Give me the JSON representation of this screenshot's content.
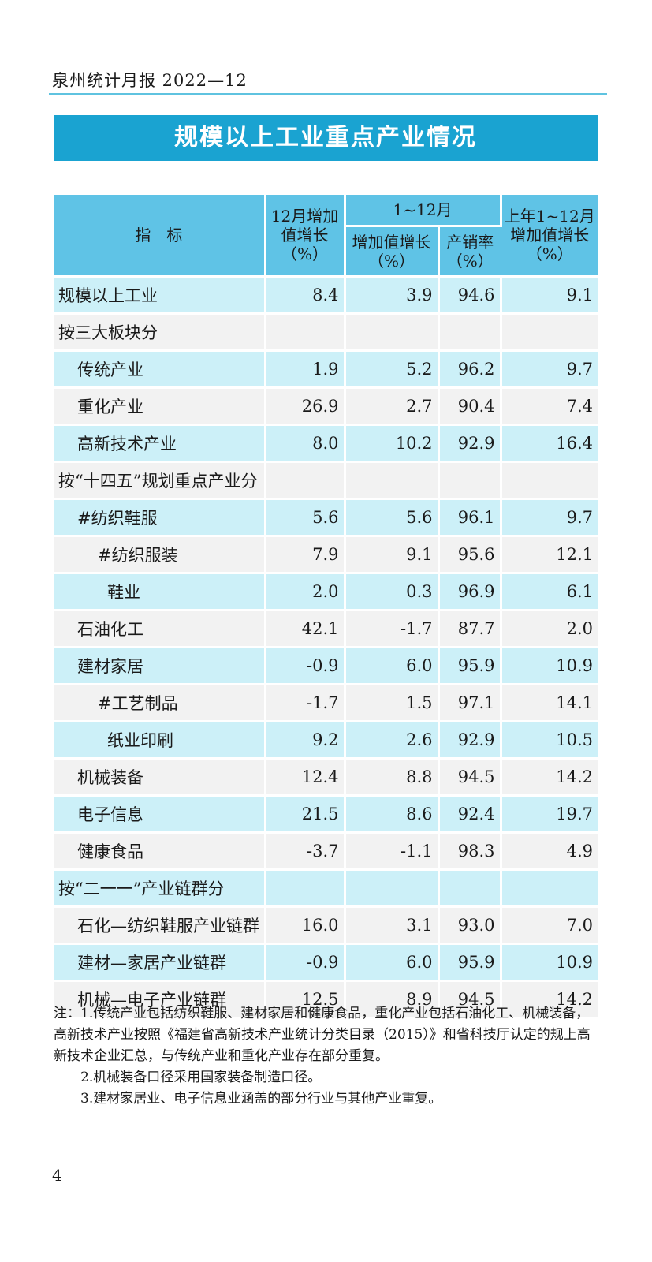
{
  "header": {
    "text": "泉州统计月报 2022—12"
  },
  "title": "规模以上工业重点产业情况",
  "table": {
    "headers": {
      "indicator": "指　标",
      "dec_growth": "12月增加值增长（%）",
      "period": "1~12月",
      "period_growth": "增加值增长（%）",
      "period_sales_rate": "产销率（%）",
      "prev_year_growth": "上年1~12月增加值增长（%）"
    },
    "rows": [
      {
        "label": "规模以上工业",
        "dec": "8.4",
        "growth": "3.9",
        "sales": "94.6",
        "prev": "9.1"
      },
      {
        "label": "按三大板块分",
        "dec": "",
        "growth": "",
        "sales": "",
        "prev": ""
      },
      {
        "label": "传统产业",
        "dec": "1.9",
        "growth": "5.2",
        "sales": "96.2",
        "prev": "9.7"
      },
      {
        "label": "重化产业",
        "dec": "26.9",
        "growth": "2.7",
        "sales": "90.4",
        "prev": "7.4"
      },
      {
        "label": "高新技术产业",
        "dec": "8.0",
        "growth": "10.2",
        "sales": "92.9",
        "prev": "16.4"
      },
      {
        "label": "按“十四五”规划重点产业分",
        "dec": "",
        "growth": "",
        "sales": "",
        "prev": ""
      },
      {
        "label": "#纺织鞋服",
        "dec": "5.6",
        "growth": "5.6",
        "sales": "96.1",
        "prev": "9.7"
      },
      {
        "label": "#纺织服装",
        "dec": "7.9",
        "growth": "9.1",
        "sales": "95.6",
        "prev": "12.1"
      },
      {
        "label": "鞋业",
        "dec": "2.0",
        "growth": "0.3",
        "sales": "96.9",
        "prev": "6.1"
      },
      {
        "label": "石油化工",
        "dec": "42.1",
        "growth": "-1.7",
        "sales": "87.7",
        "prev": "2.0"
      },
      {
        "label": "建材家居",
        "dec": "-0.9",
        "growth": "6.0",
        "sales": "95.9",
        "prev": "10.9"
      },
      {
        "label": "#工艺制品",
        "dec": "-1.7",
        "growth": "1.5",
        "sales": "97.1",
        "prev": "14.1"
      },
      {
        "label": "纸业印刷",
        "dec": "9.2",
        "growth": "2.6",
        "sales": "92.9",
        "prev": "10.5"
      },
      {
        "label": "机械装备",
        "dec": "12.4",
        "growth": "8.8",
        "sales": "94.5",
        "prev": "14.2"
      },
      {
        "label": "电子信息",
        "dec": "21.5",
        "growth": "8.6",
        "sales": "92.4",
        "prev": "19.7"
      },
      {
        "label": "健康食品",
        "dec": "-3.7",
        "growth": "-1.1",
        "sales": "98.3",
        "prev": "4.9"
      },
      {
        "label": "按“二一一”产业链群分",
        "dec": "",
        "growth": "",
        "sales": "",
        "prev": ""
      },
      {
        "label": "石化—纺织鞋服产业链群",
        "dec": "16.0",
        "growth": "3.1",
        "sales": "93.0",
        "prev": "7.0"
      },
      {
        "label": "建材—家居产业链群",
        "dec": "-0.9",
        "growth": "6.0",
        "sales": "95.9",
        "prev": "10.9"
      },
      {
        "label": "机械—电子产业链群",
        "dec": "12.5",
        "growth": "8.9",
        "sales": "94.5",
        "prev": "14.2"
      }
    ]
  },
  "notes": [
    "注：1.传统产业包括纺织鞋服、建材家居和健康食品，重化产业包括石油化工、机械装备，高新技术产业按照《福建省高新技术产业统计分类目录（2015）》和省科技厅认定的规上高新技术企业汇总，与传统产业和重化产业存在部分重复。",
    "2.机械装备口径采用国家装备制造口径。",
    "3.建材家居业、电子信息业涵盖的部分行业与其他产业重复。"
  ],
  "page_number": "4",
  "colors": {
    "banner": "#1aa3d1",
    "header_fill": "#5fc3e6",
    "row_blue": "#ccf0f8",
    "row_gray": "#f2f2f2",
    "rule": "#5fc3e0"
  }
}
